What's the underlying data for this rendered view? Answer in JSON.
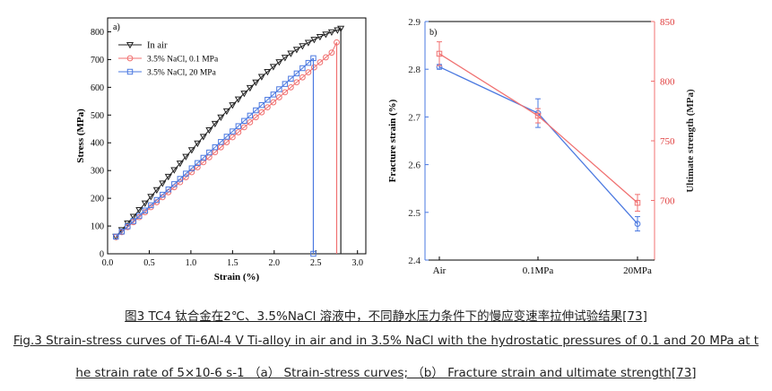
{
  "chart_data": [
    {
      "type": "line",
      "panel_label": "a)",
      "xlabel": "Strain (%)",
      "ylabel": "Stress (MPa)",
      "xlim": [
        0,
        3.1
      ],
      "ylim": [
        0,
        850
      ],
      "xticks": [
        0.0,
        0.5,
        1.0,
        1.5,
        2.0,
        2.5,
        3.0
      ],
      "xtick_labels": [
        "0.0",
        "0.5",
        "1.0",
        "1.5",
        "2.0",
        "2.5",
        "3.0"
      ],
      "yticks": [
        0,
        100,
        200,
        300,
        400,
        500,
        600,
        700,
        800
      ],
      "ytick_labels": [
        "0",
        "100",
        "200",
        "300",
        "400",
        "500",
        "600",
        "700",
        "800"
      ],
      "legend_position": "top-left",
      "series": [
        {
          "name": "In air",
          "color": "#222222",
          "marker": "triangle-down",
          "x": [
            0.1,
            0.17,
            0.24,
            0.31,
            0.38,
            0.45,
            0.52,
            0.59,
            0.66,
            0.73,
            0.8,
            0.87,
            0.94,
            1.01,
            1.08,
            1.15,
            1.22,
            1.29,
            1.36,
            1.43,
            1.5,
            1.57,
            1.64,
            1.71,
            1.78,
            1.85,
            1.92,
            1.99,
            2.06,
            2.13,
            2.2,
            2.27,
            2.34,
            2.41,
            2.48,
            2.55,
            2.62,
            2.69,
            2.76,
            2.8
          ],
          "y": [
            62,
            86,
            110,
            134,
            158,
            182,
            206,
            230,
            254,
            278,
            302,
            326,
            350,
            374,
            398,
            422,
            446,
            469,
            492,
            514,
            536,
            557,
            578,
            598,
            618,
            638,
            656,
            674,
            691,
            707,
            722,
            736,
            749,
            761,
            772,
            782,
            791,
            799,
            806,
            812
          ],
          "failure_strain": 2.8
        },
        {
          "name": "3.5% NaCl, 0.1 MPa",
          "color": "#f07070",
          "marker": "circle",
          "x": [
            0.1,
            0.17,
            0.24,
            0.31,
            0.38,
            0.45,
            0.52,
            0.59,
            0.66,
            0.73,
            0.8,
            0.87,
            0.94,
            1.01,
            1.08,
            1.15,
            1.22,
            1.29,
            1.36,
            1.43,
            1.5,
            1.57,
            1.64,
            1.71,
            1.78,
            1.85,
            1.92,
            1.99,
            2.06,
            2.13,
            2.2,
            2.27,
            2.34,
            2.41,
            2.48,
            2.55,
            2.62,
            2.69,
            2.75
          ],
          "y": [
            60,
            78,
            96,
            114,
            132,
            150,
            168,
            186,
            204,
            222,
            240,
            258,
            276,
            294,
            312,
            330,
            348,
            366,
            384,
            402,
            420,
            438,
            456,
            474,
            492,
            510,
            528,
            546,
            564,
            582,
            600,
            618,
            636,
            654,
            672,
            690,
            708,
            725,
            762
          ],
          "failure_strain": 2.75
        },
        {
          "name": "3.5% NaCl, 20 MPa",
          "color": "#4a78e0",
          "marker": "square",
          "x": [
            0.1,
            0.17,
            0.24,
            0.31,
            0.38,
            0.45,
            0.52,
            0.59,
            0.66,
            0.73,
            0.8,
            0.87,
            0.94,
            1.01,
            1.08,
            1.15,
            1.22,
            1.29,
            1.36,
            1.43,
            1.5,
            1.57,
            1.64,
            1.71,
            1.78,
            1.85,
            1.92,
            1.99,
            2.06,
            2.13,
            2.2,
            2.27,
            2.34,
            2.41,
            2.47
          ],
          "y": [
            62,
            80,
            99,
            118,
            137,
            156,
            175,
            194,
            213,
            232,
            251,
            270,
            289,
            308,
            327,
            346,
            365,
            384,
            403,
            422,
            441,
            460,
            479,
            498,
            517,
            536,
            555,
            574,
            593,
            612,
            631,
            650,
            669,
            688,
            705
          ],
          "failure_strain": 2.47
        }
      ]
    },
    {
      "type": "line",
      "panel_label": "b)",
      "categories": [
        "Air",
        "0.1MPa",
        "20MPa"
      ],
      "ylabel": "Fracture strain (%)",
      "y2label": "Ultimate strength (MPa)",
      "ylim": [
        2.4,
        2.9
      ],
      "y2lim": [
        650,
        850
      ],
      "yticks": [
        2.4,
        2.5,
        2.6,
        2.7,
        2.8,
        2.9
      ],
      "ytick_labels": [
        "2.4",
        "2.5",
        "2.6",
        "2.7",
        "2.8",
        "2.9"
      ],
      "y2ticks": [
        700,
        750,
        800,
        850
      ],
      "y2tick_labels": [
        "700",
        "750",
        "800",
        "850"
      ],
      "series": [
        {
          "axis": "left",
          "color": "#4a78e0",
          "marker": "circle",
          "values": [
            2.805,
            2.708,
            2.476
          ],
          "errors": [
            0.005,
            0.03,
            0.015
          ]
        },
        {
          "axis": "right",
          "color": "#f07070",
          "marker": "square",
          "values": [
            823,
            771,
            698
          ],
          "errors": [
            10,
            6,
            7
          ]
        }
      ]
    }
  ],
  "caption": {
    "zh": "图3 TC4 钛合金在2℃、3.5%NaCl 溶液中，不同静水压力条件下的慢应变速率拉伸试验结果[73]",
    "en_line1": "Fig.3 Strain-stress curves of Ti-6Al-4 V Ti-alloy in air and in 3.5% NaCl with the hydrostatic pressures of 0.1 and 20 MPa at t",
    "en_line2": "he strain rate of 5×10-6 s-1 （a） Strain-stress curves; （b） Fracture strain and ultimate strength[73]"
  }
}
